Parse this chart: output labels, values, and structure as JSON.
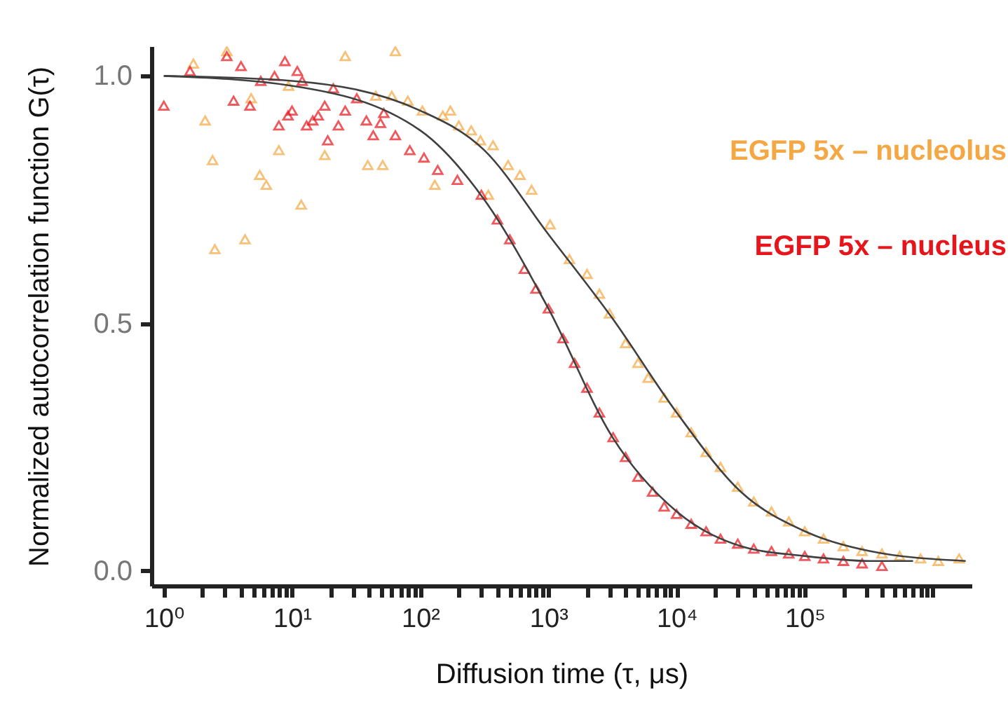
{
  "chart_data": {
    "type": "scatter",
    "xlabel": "Diffusion time (τ, μs)",
    "ylabel": "Normalized autocorrelation function G(τ)",
    "log": "x",
    "marker": "triangle",
    "legend": false,
    "grid": false,
    "xlim": [
      0.8,
      2000000
    ],
    "ylim": [
      -0.03,
      1.06
    ],
    "xticks": [
      {
        "value": 1,
        "label": "10⁰"
      },
      {
        "value": 2,
        "label": null
      },
      {
        "value": 3,
        "label": null
      },
      {
        "value": 4,
        "label": null
      },
      {
        "value": 5,
        "label": null
      },
      {
        "value": 6,
        "label": null
      },
      {
        "value": 7,
        "label": null
      },
      {
        "value": 8,
        "label": null
      },
      {
        "value": 9,
        "label": null
      },
      {
        "value": 10,
        "label": "10¹"
      },
      {
        "value": 20,
        "label": null
      },
      {
        "value": 30,
        "label": null
      },
      {
        "value": 40,
        "label": null
      },
      {
        "value": 50,
        "label": null
      },
      {
        "value": 60,
        "label": null
      },
      {
        "value": 70,
        "label": null
      },
      {
        "value": 80,
        "label": null
      },
      {
        "value": 90,
        "label": null
      },
      {
        "value": 100,
        "label": "10²"
      },
      {
        "value": 200,
        "label": null
      },
      {
        "value": 300,
        "label": null
      },
      {
        "value": 400,
        "label": null
      },
      {
        "value": 500,
        "label": null
      },
      {
        "value": 600,
        "label": null
      },
      {
        "value": 700,
        "label": null
      },
      {
        "value": 800,
        "label": null
      },
      {
        "value": 900,
        "label": null
      },
      {
        "value": 1000,
        "label": "10³"
      },
      {
        "value": 2000,
        "label": null
      },
      {
        "value": 3000,
        "label": null
      },
      {
        "value": 4000,
        "label": null
      },
      {
        "value": 5000,
        "label": null
      },
      {
        "value": 6000,
        "label": null
      },
      {
        "value": 7000,
        "label": null
      },
      {
        "value": 8000,
        "label": null
      },
      {
        "value": 9000,
        "label": null
      },
      {
        "value": 10000,
        "label": "10⁴"
      },
      {
        "value": 20000,
        "label": null
      },
      {
        "value": 30000,
        "label": null
      },
      {
        "value": 40000,
        "label": null
      },
      {
        "value": 50000,
        "label": null
      },
      {
        "value": 60000,
        "label": null
      },
      {
        "value": 70000,
        "label": null
      },
      {
        "value": 80000,
        "label": null
      },
      {
        "value": 90000,
        "label": null
      },
      {
        "value": 100000,
        "label": "10⁵"
      },
      {
        "value": 200000,
        "label": null
      },
      {
        "value": 300000,
        "label": null
      },
      {
        "value": 400000,
        "label": null
      },
      {
        "value": 500000,
        "label": null
      },
      {
        "value": 600000,
        "label": null
      },
      {
        "value": 700000,
        "label": null
      },
      {
        "value": 800000,
        "label": null
      },
      {
        "value": 900000,
        "label": null
      },
      {
        "value": 1000000,
        "label": null
      }
    ],
    "yticks": [
      {
        "value": 0,
        "label": "0.0"
      },
      {
        "value": 0.5,
        "label": "0.5"
      },
      {
        "value": 1,
        "label": "1.0"
      }
    ],
    "series": [
      {
        "name": "EGFP 5x – nucleolus",
        "color": "#f4a742",
        "x": [
          1.7,
          3.1,
          2.1,
          2.4,
          2.5,
          4.3,
          5.6,
          6.3,
          4.8,
          7.9,
          11.8,
          9.4,
          26,
          64,
          18,
          39,
          51,
          45,
          60,
          80,
          104,
          150,
          172,
          130,
          200,
          250,
          295,
          370,
          340,
          485,
          600,
          740,
          1030,
          1460,
          2000,
          2500,
          3000,
          4000,
          5000,
          6000,
          8000,
          10000,
          13000,
          17000,
          22000,
          30000,
          40000,
          55000,
          75000,
          100000,
          140000,
          200000,
          280000,
          400000,
          550000,
          800000,
          1100000,
          1600000
        ],
        "values": [
          1.025,
          1.05,
          0.91,
          0.83,
          0.65,
          0.67,
          0.8,
          0.78,
          0.955,
          0.85,
          0.74,
          0.98,
          1.04,
          1.05,
          0.84,
          0.82,
          0.82,
          0.96,
          0.96,
          0.95,
          0.93,
          0.92,
          0.93,
          0.78,
          0.9,
          0.89,
          0.87,
          0.86,
          0.76,
          0.82,
          0.8,
          0.77,
          0.7,
          0.63,
          0.6,
          0.56,
          0.52,
          0.46,
          0.42,
          0.39,
          0.35,
          0.32,
          0.28,
          0.24,
          0.21,
          0.17,
          0.14,
          0.12,
          0.1,
          0.08,
          0.065,
          0.05,
          0.04,
          0.035,
          0.03,
          0.025,
          0.02,
          0.025
        ]
      },
      {
        "name": "EGFP 5x – nucleus",
        "color": "#e8141b",
        "x": [
          1,
          1.6,
          3.1,
          3.5,
          4,
          4.7,
          5.7,
          7.3,
          8.8,
          11,
          12,
          7.9,
          9.3,
          10,
          13,
          14.5,
          16,
          18,
          19,
          21,
          23,
          26,
          32,
          38,
          43,
          49,
          52,
          64,
          83,
          107,
          137,
          195,
          300,
          400,
          500,
          650,
          800,
          1000,
          1300,
          1600,
          2000,
          2500,
          3200,
          4000,
          5000,
          6500,
          8000,
          10000,
          13000,
          17000,
          22000,
          30000,
          40000,
          55000,
          75000,
          100000,
          140000,
          200000,
          280000,
          400000
        ],
        "values": [
          0.94,
          1.01,
          1.04,
          0.95,
          1.02,
          0.94,
          0.99,
          1,
          1.03,
          1.01,
          0.99,
          0.9,
          0.92,
          0.93,
          0.9,
          0.91,
          0.92,
          0.94,
          0.87,
          0.975,
          0.9,
          0.93,
          0.955,
          0.91,
          0.88,
          0.905,
          0.925,
          0.88,
          0.85,
          0.835,
          0.81,
          0.79,
          0.76,
          0.71,
          0.67,
          0.61,
          0.57,
          0.53,
          0.47,
          0.42,
          0.37,
          0.32,
          0.27,
          0.23,
          0.19,
          0.16,
          0.13,
          0.115,
          0.095,
          0.08,
          0.065,
          0.055,
          0.045,
          0.04,
          0.035,
          0.03,
          0.025,
          0.02,
          0.015,
          0.01
        ]
      },
      {
        "type": "line",
        "marker": "none",
        "color": "#404040",
        "x": [
          1,
          10,
          100,
          316,
          1000,
          3162,
          10000,
          31620,
          100000,
          320000,
          1800000
        ],
        "values": [
          1,
          0.99,
          0.93,
          0.85,
          0.68,
          0.51,
          0.32,
          0.16,
          0.08,
          0.04,
          0.02
        ]
      },
      {
        "type": "line",
        "marker": "none",
        "color": "#404040",
        "x": [
          1,
          10,
          100,
          316,
          1000,
          3162,
          10000,
          31620,
          100000,
          320000,
          700000
        ],
        "values": [
          1,
          0.98,
          0.89,
          0.75,
          0.53,
          0.27,
          0.12,
          0.05,
          0.03,
          0.02,
          0.02
        ]
      }
    ]
  }
}
